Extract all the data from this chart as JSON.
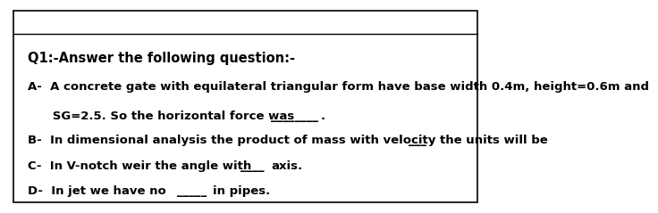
{
  "title": "Q1:-Answer the following question:-",
  "line_A1": "A-  A concrete gate with equilateral triangular form have base width 0.4m, height=0.6m and",
  "line_A2": "      SG=2.5. So the horizontal force was",
  "line_A2_blank": "________",
  "line_A2_dot": ".",
  "line_B": "B-  In dimensional analysis the product of mass with velocity the units will be",
  "line_B_blank": "___",
  "line_B_dot": ".",
  "line_C": "C-  In V-notch weir the angle with",
  "line_C_blank": "____",
  "line_C_axis": "axis.",
  "line_D": "D-  In jet we have no",
  "line_D_blank": "_____",
  "line_D_end": "in pipes.",
  "bg_color": "#ffffff",
  "text_color": "#000000",
  "font_size": 9.5,
  "title_font_size": 10.5,
  "border_color": "#000000"
}
